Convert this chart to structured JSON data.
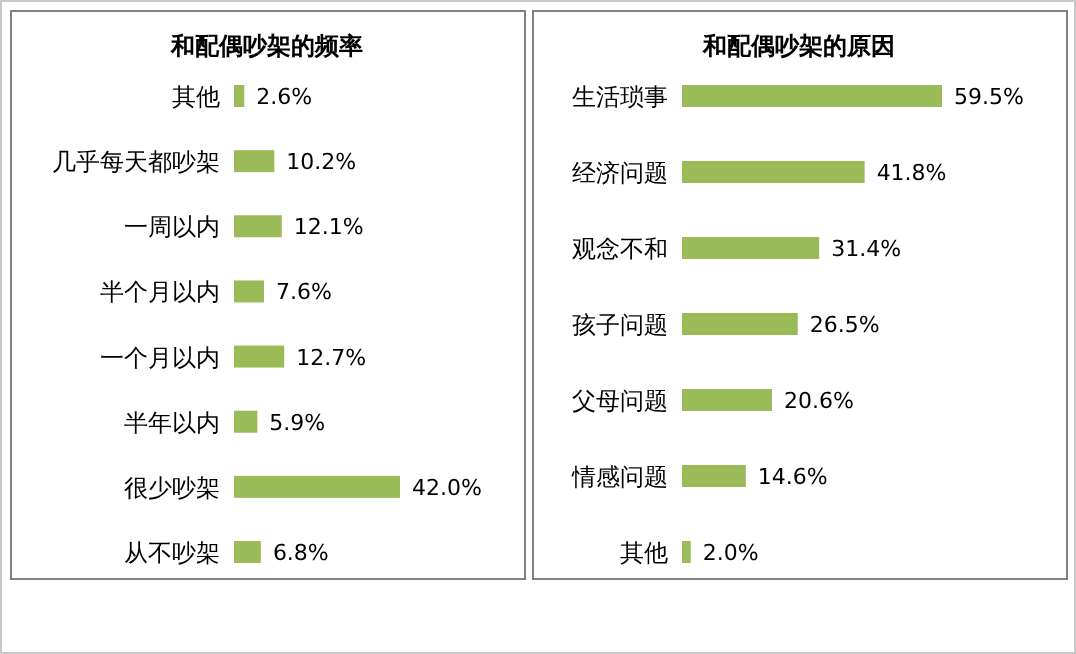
{
  "chart_data": [
    {
      "type": "bar",
      "orientation": "horizontal",
      "title": "和配偶吵架的频率",
      "categories": [
        "其他",
        "几乎每天都吵架",
        "一周以内",
        "半个月以内",
        "一个月以内",
        "半年以内",
        "很少吵架",
        "从不吵架"
      ],
      "values": [
        2.6,
        10.2,
        12.1,
        7.6,
        12.7,
        5.9,
        42.0,
        6.8
      ],
      "value_labels": [
        "2.6%",
        "10.2%",
        "12.1%",
        "7.6%",
        "12.7%",
        "5.9%",
        "42.0%",
        "6.8%"
      ],
      "color": "#9bbb59"
    },
    {
      "type": "bar",
      "orientation": "horizontal",
      "title": "和配偶吵架的原因",
      "categories": [
        "生活琐事",
        "经济问题",
        "观念不和",
        "孩子问题",
        "父母问题",
        "情感问题",
        "其他"
      ],
      "values": [
        59.5,
        41.8,
        31.4,
        26.5,
        20.6,
        14.6,
        2.0
      ],
      "value_labels": [
        "59.5%",
        "41.8%",
        "31.4%",
        "26.5%",
        "20.6%",
        "14.6%",
        "2.0%"
      ],
      "color": "#9bbb59"
    }
  ]
}
